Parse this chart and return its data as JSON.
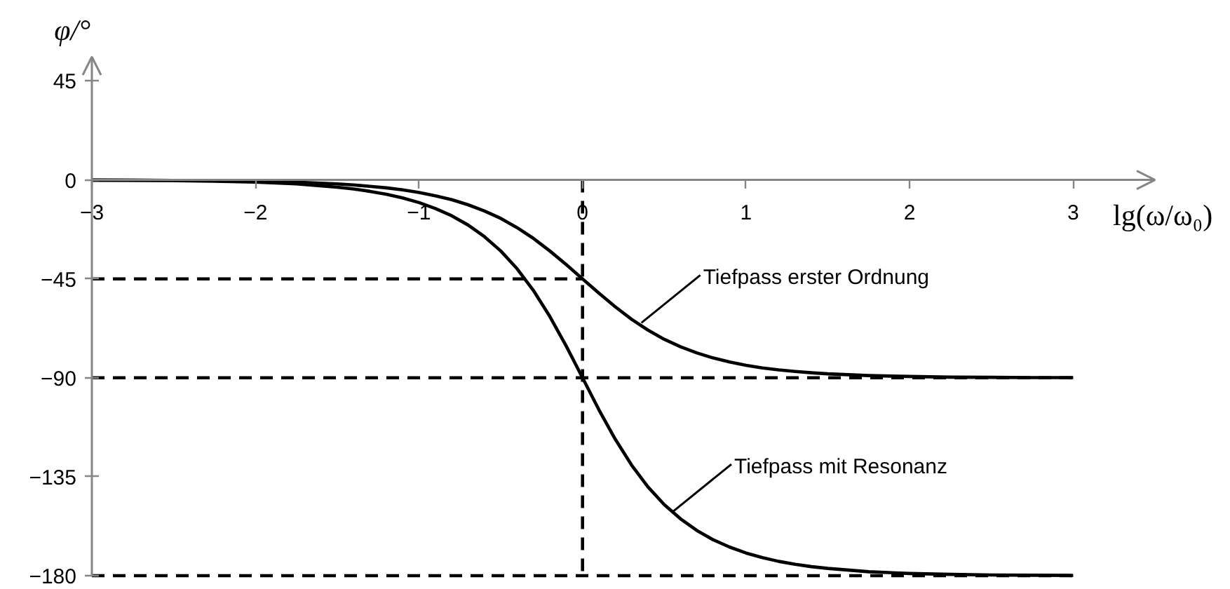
{
  "chart_data": {
    "type": "line",
    "xlabel": "lg(ω/ω₀)",
    "ylabel": "φ/°",
    "xlim": [
      -3,
      3.5
    ],
    "ylim": [
      -180,
      56
    ],
    "xticks": [
      -3,
      -2,
      -1,
      0,
      1,
      2,
      3
    ],
    "yticks": [
      -180,
      -135,
      -90,
      -45,
      0,
      45
    ],
    "x": [
      -3,
      -2.75,
      -2.5,
      -2.25,
      -2,
      -1.75,
      -1.5,
      -1.4,
      -1.3,
      -1.2,
      -1.1,
      -1,
      -0.9,
      -0.8,
      -0.7,
      -0.6,
      -0.5,
      -0.4,
      -0.3,
      -0.2,
      -0.1,
      0,
      0.1,
      0.2,
      0.3,
      0.4,
      0.5,
      0.6,
      0.7,
      0.8,
      0.9,
      1,
      1.1,
      1.2,
      1.3,
      1.4,
      1.5,
      1.75,
      2,
      2.25,
      2.5,
      2.75,
      3
    ],
    "series": [
      {
        "color": "#000000",
        "values": [
          -0.1,
          -0.1,
          -0.2,
          -0.3,
          -0.6,
          -1.0,
          -1.8,
          -2.3,
          -2.9,
          -3.6,
          -4.5,
          -5.7,
          -7.2,
          -9.0,
          -11.3,
          -14.1,
          -17.5,
          -21.7,
          -26.6,
          -32.3,
          -38.5,
          -45,
          -51.5,
          -57.7,
          -63.4,
          -68.3,
          -72.5,
          -75.9,
          -78.7,
          -81.0,
          -82.8,
          -84.3,
          -85.5,
          -86.4,
          -87.1,
          -87.7,
          -88.2,
          -89.0,
          -89.4,
          -89.7,
          -89.8,
          -89.9,
          -89.9
        ]
      },
      {
        "color": "#000000",
        "values": [
          -0.1,
          -0.2,
          -0.3,
          -0.6,
          -1.0,
          -1.8,
          -3.3,
          -4.1,
          -5.2,
          -6.5,
          -8.2,
          -10.3,
          -13.0,
          -16.3,
          -20.5,
          -25.8,
          -32.3,
          -40.4,
          -50.3,
          -62.1,
          -75.5,
          -90,
          -104.5,
          -117.9,
          -129.7,
          -139.6,
          -147.7,
          -154.2,
          -159.5,
          -163.7,
          -167.0,
          -169.7,
          -171.8,
          -173.5,
          -174.8,
          -175.9,
          -176.7,
          -178.2,
          -179.0,
          -179.4,
          -179.7,
          -179.8,
          -179.9
        ]
      },
      {
        "color": "#000000",
        "line_style": "dashed",
        "x": [
          -3,
          0
        ],
        "values": [
          -45,
          -45
        ]
      },
      {
        "color": "#000000",
        "line_style": "dashed",
        "x": [
          -3,
          3
        ],
        "values": [
          -90,
          -90
        ]
      },
      {
        "color": "#000000",
        "line_style": "dashed",
        "x": [
          -3,
          3
        ],
        "values": [
          -180,
          -180
        ]
      },
      {
        "color": "#000000",
        "line_style": "dashed",
        "x": [
          0,
          0
        ],
        "values": [
          0,
          -180
        ]
      }
    ],
    "annotations": [
      {
        "text": "Tiefpass erster Ordnung",
        "x": 0.36,
        "y": -65
      },
      {
        "text": "Tiefpass mit Resonanz",
        "x": 0.55,
        "y": -151
      }
    ]
  }
}
